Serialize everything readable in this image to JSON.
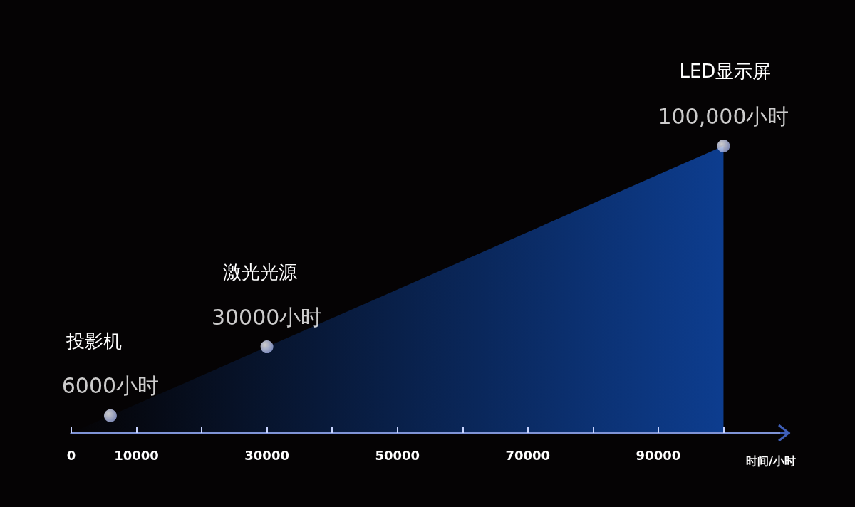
{
  "chart_data": {
    "type": "area",
    "xlabel": "时间/小时",
    "xlim": [
      0,
      110000
    ],
    "tick_labels": "x",
    "xticks": [
      0,
      {
        "value": 10000,
        "label": "10000"
      },
      {
        "value": 20000,
        "label": null
      },
      30000,
      {
        "value": 40000,
        "label": null
      },
      50000,
      {
        "value": 60000,
        "label": null
      },
      70000,
      {
        "value": 80000,
        "label": null
      },
      90000,
      {
        "value": 100000,
        "label": null
      }
    ],
    "series": [
      {
        "type": "area",
        "color": "#0d3d8f",
        "x": [
          0,
          100000
        ],
        "values": [
          0,
          100000
        ],
        "marker": "none"
      },
      {
        "type": "scatter",
        "color": "#8a9ad8",
        "x": [
          6000,
          30000,
          100000
        ],
        "values": [
          6000,
          30000,
          100000
        ],
        "marker": "circle",
        "value_labels": [
          "6000小时",
          "30000小时",
          "100,000小时"
        ]
      }
    ],
    "annotations": [
      "投影机",
      "激光光源",
      "LED显示屏"
    ],
    "grid": false
  }
}
